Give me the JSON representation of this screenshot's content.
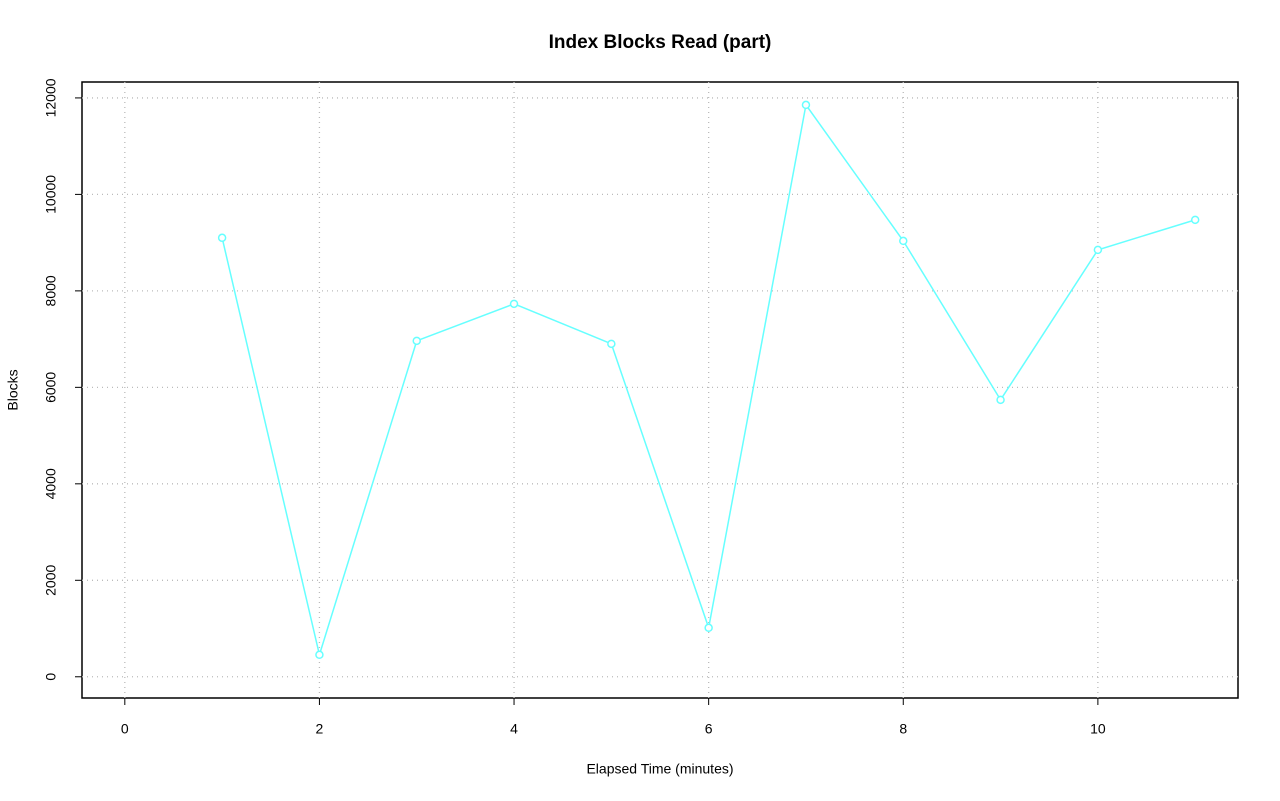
{
  "chart_data": {
    "type": "line",
    "title": "Index Blocks Read (part)",
    "x_label": "Elapsed Time (minutes)",
    "y_label": "Blocks",
    "x": [
      1,
      2,
      3,
      4,
      5,
      6,
      7,
      8,
      9,
      10,
      11
    ],
    "series": [
      {
        "name": "Blocks",
        "color": "#66ffff",
        "values": [
          9100,
          456,
          6964,
          7731,
          6902,
          1016,
          11855,
          9036,
          5741,
          8850,
          9472
        ]
      }
    ],
    "xlim": [
      -0.44,
      11.44
    ],
    "ylim": [
      -440,
      12330
    ],
    "xticks": [
      0,
      2,
      4,
      6,
      8,
      10
    ],
    "yticks": [
      0,
      2000,
      4000,
      6000,
      8000,
      10000,
      12000
    ],
    "grid": true
  }
}
